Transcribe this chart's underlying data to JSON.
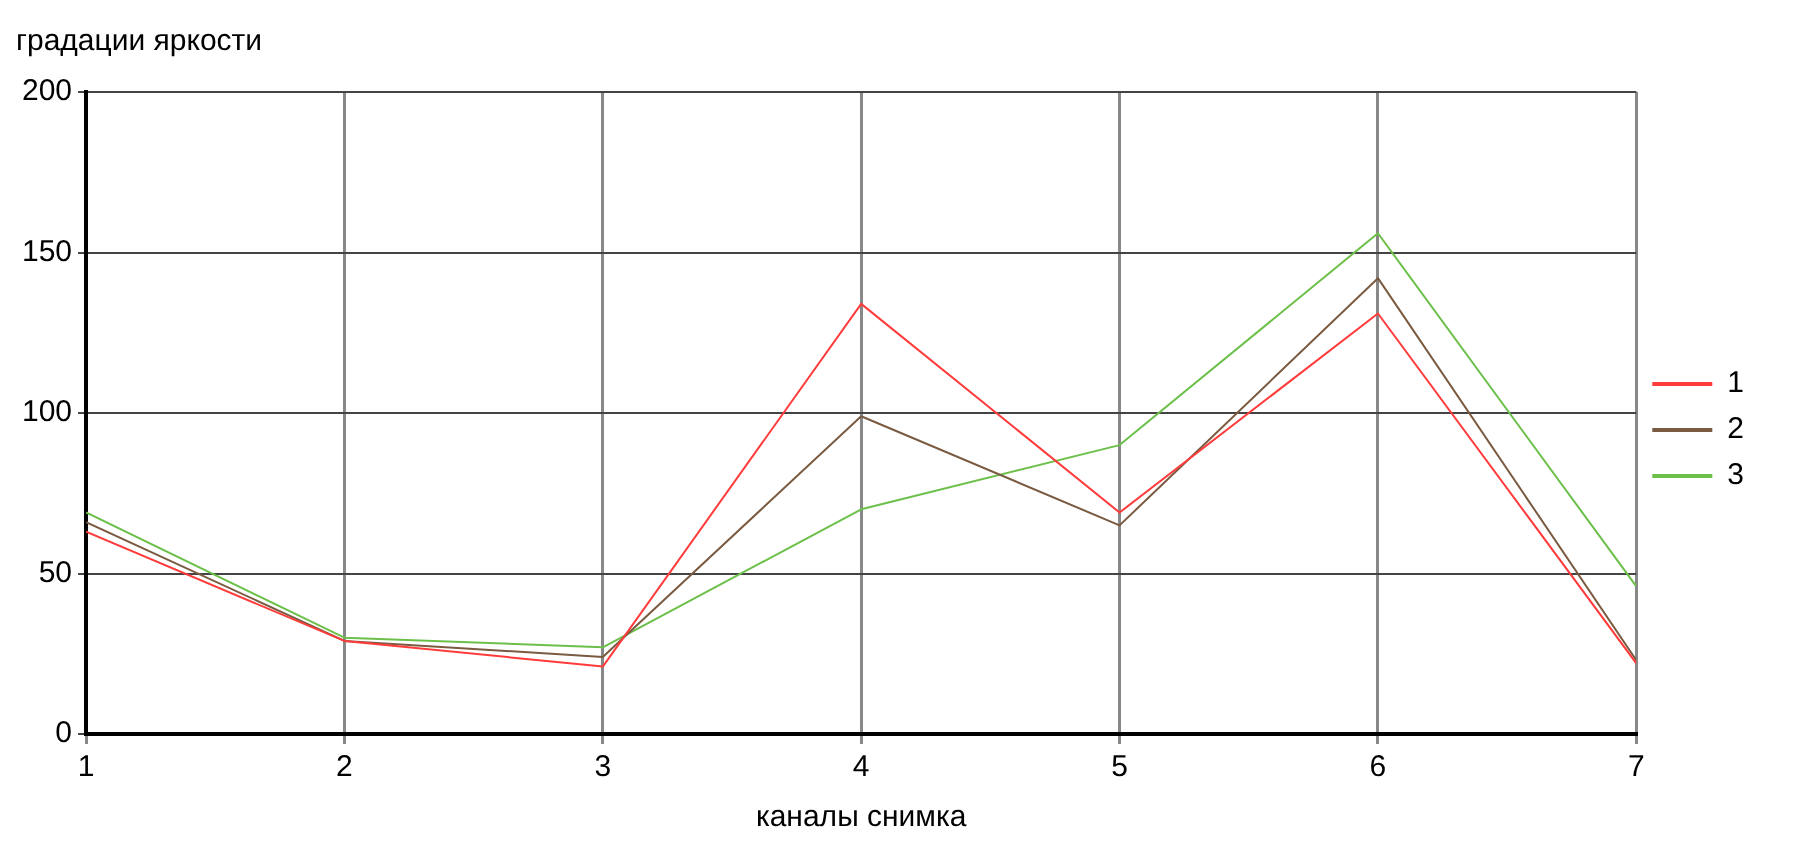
{
  "chart_data": {
    "type": "line",
    "ylabel": "градации яркости",
    "xlabel": "каналы снимка",
    "x": [
      1,
      2,
      3,
      4,
      5,
      6,
      7
    ],
    "xlim": [
      1,
      7
    ],
    "xticks": [
      1,
      2,
      3,
      4,
      5,
      6,
      7
    ],
    "ylim": [
      0,
      200
    ],
    "yticks": [
      0,
      50,
      100,
      150,
      200
    ],
    "grid": true,
    "legend": "right",
    "marker": "none",
    "line_style": "solid",
    "series": [
      {
        "name": "1",
        "color": "#ff3b3b",
        "values": [
          63,
          29,
          21,
          134,
          69,
          131,
          22
        ]
      },
      {
        "name": "2",
        "color": "#7a5a40",
        "values": [
          66,
          29,
          24,
          99,
          65,
          142,
          23
        ]
      },
      {
        "name": "3",
        "color": "#6cc04a",
        "values": [
          69,
          30,
          27,
          70,
          90,
          156,
          46
        ]
      }
    ]
  }
}
